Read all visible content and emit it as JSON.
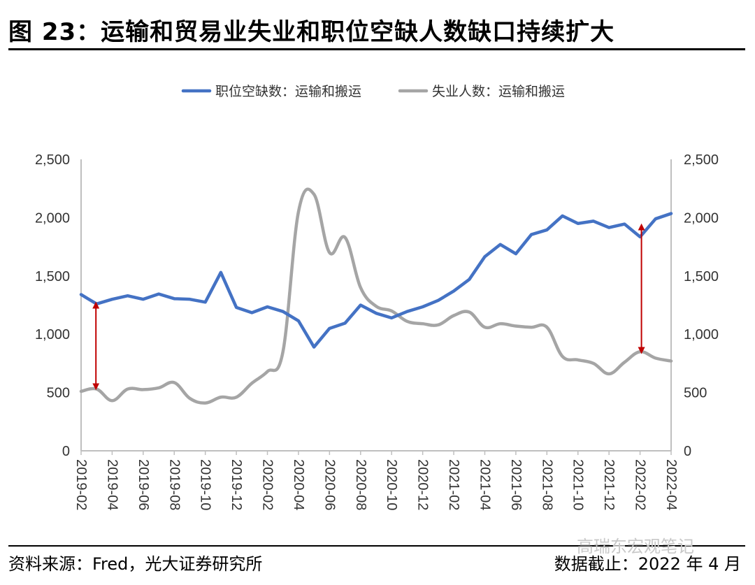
{
  "header": {
    "title": "图 23：运输和贸易业失业和职位空缺人数缺口持续扩大"
  },
  "footer": {
    "source": "资料来源：Fred，光大证券研究所",
    "cutoff": "数据截止：2022 年 4 月",
    "watermark": "高瑞东宏观笔记"
  },
  "colors": {
    "series1": "#4472C4",
    "series2": "#A5A5A5",
    "arrow": "#C00000",
    "axis": "#BFBFBF"
  },
  "chart_data": {
    "type": "line",
    "legend_position": "top-center",
    "grid": false,
    "ylim": [
      0,
      2500
    ],
    "y_ticks": [
      "0",
      "500",
      "1,000",
      "1,500",
      "2,000",
      "2,500"
    ],
    "y_tick_values": [
      0,
      500,
      1000,
      1500,
      2000,
      2500
    ],
    "x_ticks": [
      "2019-02",
      "2019-04",
      "2019-06",
      "2019-08",
      "2019-10",
      "2019-12",
      "2020-02",
      "2020-04",
      "2020-06",
      "2020-08",
      "2020-10",
      "2020-12",
      "2021-02",
      "2021-04",
      "2021-06",
      "2021-08",
      "2021-10",
      "2021-12",
      "2022-02",
      "2022-04"
    ],
    "x": [
      "2019-02",
      "2019-03",
      "2019-04",
      "2019-05",
      "2019-06",
      "2019-07",
      "2019-08",
      "2019-09",
      "2019-10",
      "2019-11",
      "2019-12",
      "2020-01",
      "2020-02",
      "2020-03",
      "2020-04",
      "2020-05",
      "2020-06",
      "2020-07",
      "2020-08",
      "2020-09",
      "2020-10",
      "2020-11",
      "2020-12",
      "2021-01",
      "2021-02",
      "2021-03",
      "2021-04",
      "2021-05",
      "2021-06",
      "2021-07",
      "2021-08",
      "2021-09",
      "2021-10",
      "2021-11",
      "2021-12",
      "2022-01",
      "2022-02",
      "2022-03",
      "2022-04"
    ],
    "series": [
      {
        "name": "职位空缺数：运输和搬运",
        "axis": "left",
        "values": [
          1340,
          1260,
          1300,
          1330,
          1300,
          1345,
          1305,
          1300,
          1275,
          1530,
          1230,
          1185,
          1235,
          1195,
          1115,
          890,
          1050,
          1095,
          1250,
          1180,
          1140,
          1195,
          1235,
          1290,
          1370,
          1470,
          1665,
          1770,
          1690,
          1855,
          1895,
          2015,
          1950,
          1970,
          1915,
          1945,
          1835,
          1990,
          2035
        ]
      },
      {
        "name": "失业人数：运输和搬运",
        "axis": "right",
        "values": [
          510,
          530,
          430,
          530,
          525,
          540,
          585,
          450,
          410,
          460,
          460,
          580,
          680,
          850,
          2050,
          2200,
          1700,
          1830,
          1400,
          1240,
          1200,
          1110,
          1090,
          1080,
          1160,
          1190,
          1060,
          1090,
          1070,
          1060,
          1060,
          810,
          780,
          750,
          660,
          760,
          850,
          795,
          770
        ]
      }
    ],
    "annotations": [
      {
        "type": "double-arrow",
        "x": "2019-03",
        "y_from": 1250,
        "y_to": 550
      },
      {
        "type": "double-arrow",
        "x": "2022-02",
        "y_from": 1920,
        "y_to": 860
      }
    ]
  }
}
